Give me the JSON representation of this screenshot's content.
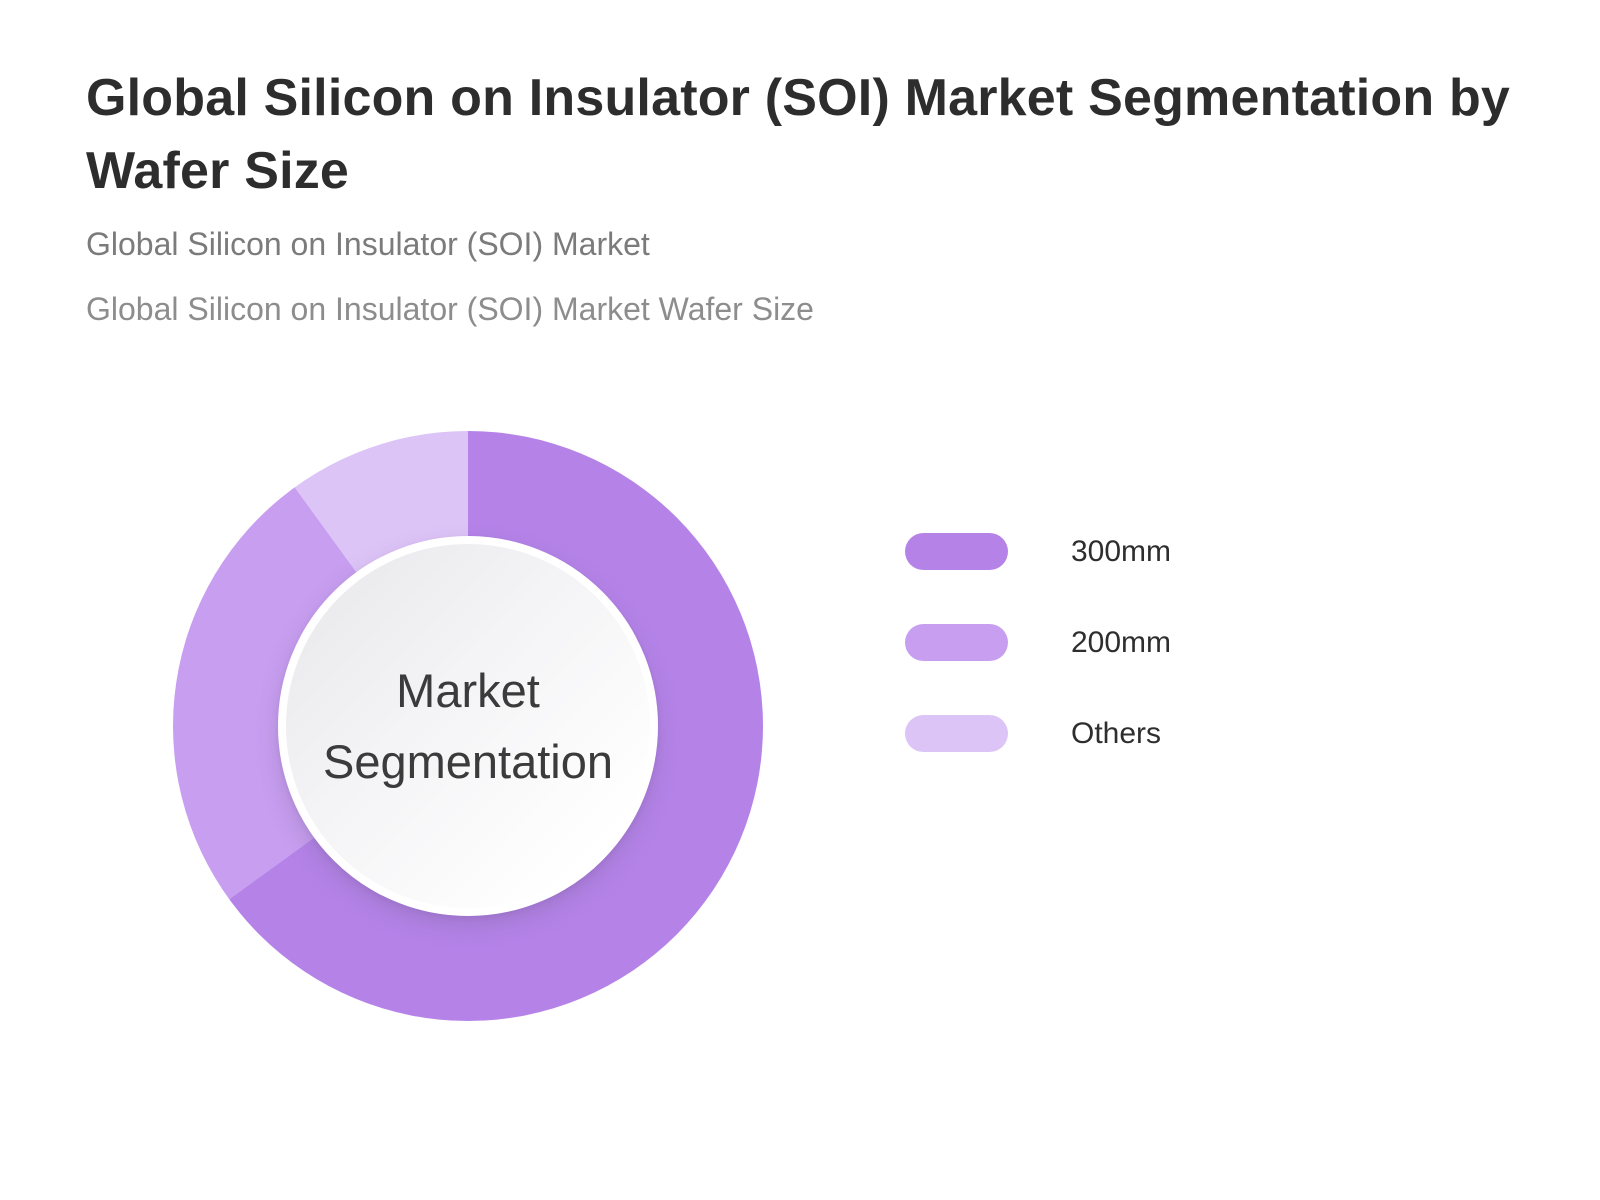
{
  "header": {
    "title": "Global Silicon on Insulator (SOI) Market Segmentation by Wafer Size",
    "title_line1": "Global Silicon on Insulator (SOI) Market Segmentation by",
    "title_line2": "Wafer Size",
    "subtitle1": "Global Silicon on Insulator (SOI) Market",
    "subtitle2": "Global Silicon on Insulator (SOI) Market Wafer Size"
  },
  "chart_data": {
    "type": "pie",
    "variant": "donut",
    "title": "Global Silicon on Insulator (SOI) Market Segmentation by Wafer Size",
    "center_label": "Market Segmentation",
    "categories": [
      "300mm",
      "200mm",
      "Others"
    ],
    "values": [
      65,
      25,
      10
    ],
    "unit": "percent",
    "start_angle_deg": 0,
    "direction": "clockwise",
    "colors": [
      "#b583e8",
      "#c89ef0",
      "#ddc4f7"
    ],
    "legend_position": "right",
    "legend": [
      {
        "label": "300mm",
        "color": "#b583e8"
      },
      {
        "label": "200mm",
        "color": "#c89ef0"
      },
      {
        "label": "Others",
        "color": "#ddc4f7"
      }
    ]
  },
  "style": {
    "background": "#ffffff",
    "title_color": "#2d2d2d",
    "subtitle_color": "#7b7b7b",
    "center_text_color": "#3b3b3b",
    "inner_circle_gradient": [
      "#e7e6ea",
      "#ffffff"
    ]
  }
}
